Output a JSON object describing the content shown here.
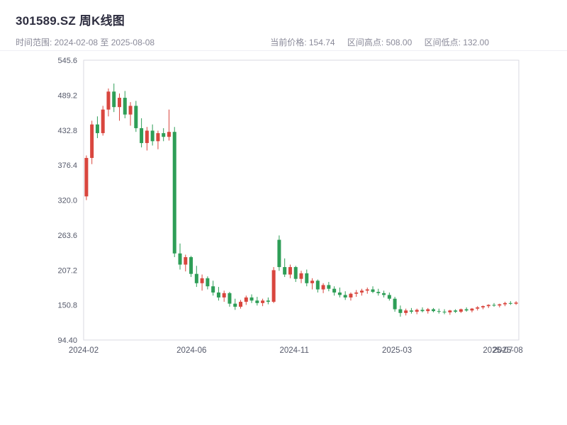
{
  "header": {
    "title": "301589.SZ 周K线图",
    "time_range": "时间范围: 2024-02-08 至 2025-08-08",
    "current_price": "当前价格: 154.74",
    "range_high": "区间高点: 508.00",
    "range_low": "区间低点: 132.00"
  },
  "chart_data": {
    "type": "candlestick",
    "title": "301589.SZ 周K线图",
    "period": "weekly",
    "date_range": [
      "2024-02-08",
      "2025-08-08"
    ],
    "current_price": 154.74,
    "range_high": 508.0,
    "range_low": 132.0,
    "legend_position": "none",
    "grid": false,
    "y_range": [
      94.4,
      545.6
    ],
    "y_ticks": [
      {
        "label": "545.6",
        "value": 545.6
      },
      {
        "label": "489.2",
        "value": 489.2
      },
      {
        "label": "432.8",
        "value": 432.8
      },
      {
        "label": "376.4",
        "value": 376.4
      },
      {
        "label": "320.0",
        "value": 320.0
      },
      {
        "label": "263.6",
        "value": 263.6
      },
      {
        "label": "207.2",
        "value": 207.2
      },
      {
        "label": "150.8",
        "value": 150.8
      },
      {
        "label": "94.40",
        "value": 94.4
      }
    ],
    "x_ticks": [
      {
        "label": "2024-02",
        "pos": 0.0
      },
      {
        "label": "2024-06",
        "pos": 0.248
      },
      {
        "label": "2024-11",
        "pos": 0.484
      },
      {
        "label": "2025-03",
        "pos": 0.72
      },
      {
        "label": "2025-07",
        "pos": 0.952
      },
      {
        "label": "2025-08",
        "pos": 0.975
      }
    ],
    "colors": {
      "up": "#d9463e",
      "down": "#2e9e57"
    },
    "candles_ohlc": [
      [
        326,
        392,
        320,
        388
      ],
      [
        388,
        448,
        378,
        442
      ],
      [
        442,
        455,
        420,
        428
      ],
      [
        428,
        472,
        424,
        466
      ],
      [
        466,
        500,
        455,
        495
      ],
      [
        495,
        508,
        462,
        470
      ],
      [
        470,
        492,
        448,
        485
      ],
      [
        485,
        496,
        452,
        458
      ],
      [
        458,
        478,
        440,
        472
      ],
      [
        472,
        480,
        430,
        436
      ],
      [
        436,
        452,
        405,
        412
      ],
      [
        412,
        438,
        400,
        432
      ],
      [
        432,
        442,
        408,
        415
      ],
      [
        415,
        432,
        402,
        428
      ],
      [
        428,
        436,
        415,
        422
      ],
      [
        422,
        466,
        416,
        430
      ],
      [
        430,
        438,
        228,
        234
      ],
      [
        234,
        250,
        208,
        216
      ],
      [
        216,
        232,
        205,
        228
      ],
      [
        228,
        230,
        196,
        201
      ],
      [
        201,
        214,
        180,
        186
      ],
      [
        186,
        200,
        174,
        194
      ],
      [
        194,
        197,
        176,
        181
      ],
      [
        181,
        190,
        166,
        171
      ],
      [
        171,
        180,
        158,
        163
      ],
      [
        163,
        174,
        156,
        170
      ],
      [
        170,
        172,
        148,
        153
      ],
      [
        153,
        161,
        143,
        148
      ],
      [
        148,
        159,
        145,
        156
      ],
      [
        156,
        166,
        151,
        163
      ],
      [
        163,
        168,
        154,
        158
      ],
      [
        158,
        164,
        150,
        154
      ],
      [
        154,
        161,
        149,
        158
      ],
      [
        158,
        163,
        152,
        156
      ],
      [
        156,
        212,
        154,
        207
      ],
      [
        256,
        263,
        206,
        212
      ],
      [
        212,
        226,
        196,
        200
      ],
      [
        200,
        216,
        194,
        212
      ],
      [
        212,
        214,
        188,
        193
      ],
      [
        193,
        206,
        186,
        202
      ],
      [
        202,
        208,
        181,
        186
      ],
      [
        186,
        194,
        176,
        190
      ],
      [
        190,
        192,
        171,
        176
      ],
      [
        176,
        186,
        170,
        183
      ],
      [
        183,
        188,
        173,
        177
      ],
      [
        177,
        181,
        166,
        171
      ],
      [
        171,
        179,
        163,
        167
      ],
      [
        167,
        173,
        159,
        163
      ],
      [
        163,
        171,
        158,
        169
      ],
      [
        169,
        175,
        164,
        171
      ],
      [
        171,
        177,
        166,
        174
      ],
      [
        174,
        179,
        169,
        176
      ],
      [
        176,
        181,
        170,
        172
      ],
      [
        172,
        177,
        166,
        170
      ],
      [
        170,
        174,
        163,
        167
      ],
      [
        167,
        171,
        158,
        161
      ],
      [
        161,
        164,
        140,
        144
      ],
      [
        144,
        150,
        132,
        138
      ],
      [
        138,
        145,
        134,
        142
      ],
      [
        142,
        146,
        137,
        140
      ],
      [
        140,
        145,
        136,
        143
      ],
      [
        143,
        147,
        139,
        141
      ],
      [
        141,
        146,
        137,
        144
      ],
      [
        144,
        146,
        139,
        141
      ],
      [
        141,
        145,
        137,
        140
      ],
      [
        140,
        144,
        136,
        139
      ],
      [
        139,
        143,
        135,
        142
      ],
      [
        142,
        144,
        138,
        140
      ],
      [
        140,
        145,
        138,
        144
      ],
      [
        144,
        147,
        140,
        142
      ],
      [
        142,
        146,
        139,
        145
      ],
      [
        145,
        149,
        142,
        147
      ],
      [
        147,
        150,
        144,
        149
      ],
      [
        149,
        152,
        146,
        151
      ],
      [
        151,
        154,
        148,
        150
      ],
      [
        150,
        153,
        147,
        152
      ],
      [
        152,
        156,
        149,
        154
      ],
      [
        154,
        157,
        151,
        153
      ],
      [
        153,
        157,
        151,
        154.74
      ]
    ]
  }
}
